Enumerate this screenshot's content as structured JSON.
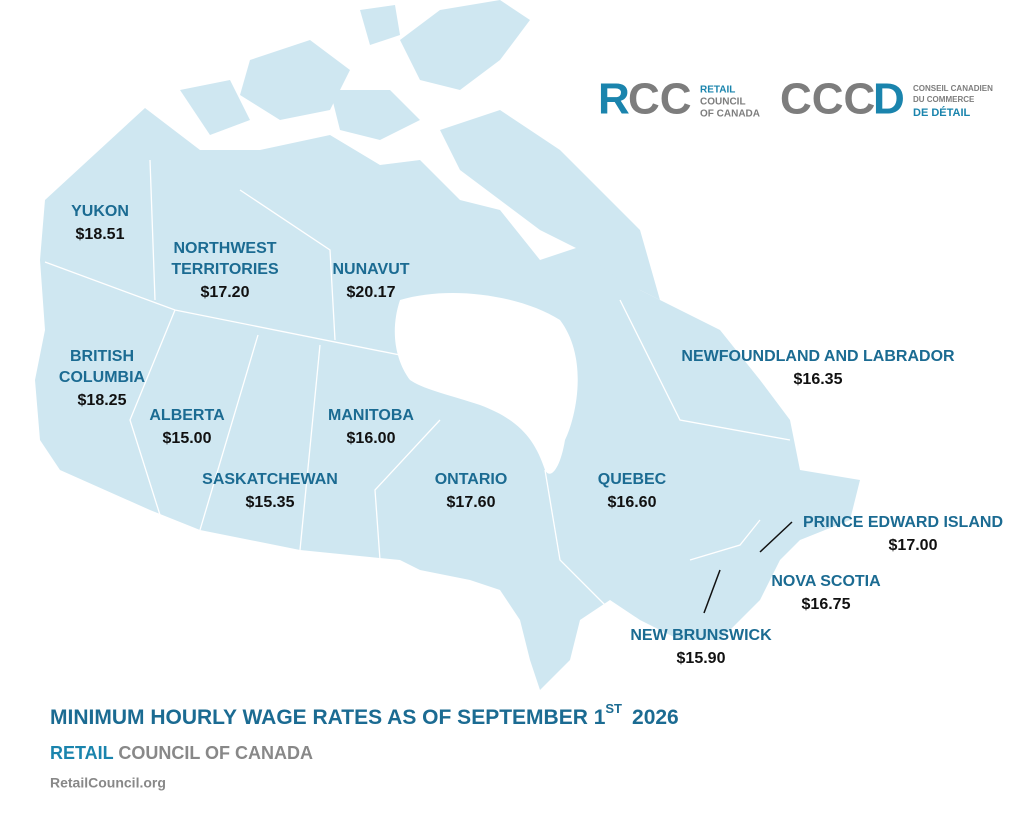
{
  "logos": {
    "rcc": {
      "mark": [
        "R",
        "CC"
      ],
      "text": [
        "RETAIL",
        "COUNCIL",
        "OF CANADA"
      ]
    },
    "cccd": {
      "mark": [
        "CCC",
        "D"
      ],
      "text": [
        "CONSEIL CANADIEN",
        "DU COMMERCE",
        "DE DÉTAIL"
      ]
    }
  },
  "regions": [
    {
      "name": [
        "YUKON"
      ],
      "wage": "$18.51"
    },
    {
      "name": [
        "NORTHWEST",
        "TERRITORIES"
      ],
      "wage": "$17.20"
    },
    {
      "name": [
        "NUNAVUT"
      ],
      "wage": "$20.17"
    },
    {
      "name": [
        "BRITISH",
        "COLUMBIA"
      ],
      "wage": "$18.25"
    },
    {
      "name": [
        "ALBERTA"
      ],
      "wage": "$15.00"
    },
    {
      "name": [
        "MANITOBA"
      ],
      "wage": "$16.00"
    },
    {
      "name": [
        "SASKATCHEWAN"
      ],
      "wage": "$15.35"
    },
    {
      "name": [
        "ONTARIO"
      ],
      "wage": "$17.60"
    },
    {
      "name": [
        "QUEBEC"
      ],
      "wage": "$16.60"
    },
    {
      "name": [
        "NEWFOUNDLAND AND LABRADOR"
      ],
      "wage": "$16.35"
    },
    {
      "name": [
        "PRINCE EDWARD ISLAND"
      ],
      "wage": "$17.00"
    },
    {
      "name": [
        "NOVA SCOTIA"
      ],
      "wage": "$16.75"
    },
    {
      "name": [
        "NEW BRUNSWICK"
      ],
      "wage": "$15.90"
    }
  ],
  "footer": {
    "title": "MINIMUM HOURLY WAGE RATES AS OF SEPTEMBER 1",
    "superscript": "ST",
    "year": "2026",
    "org_primary": "RETAIL",
    "org_secondary": "COUNCIL OF CANADA",
    "url": "RetailCouncil.org"
  }
}
